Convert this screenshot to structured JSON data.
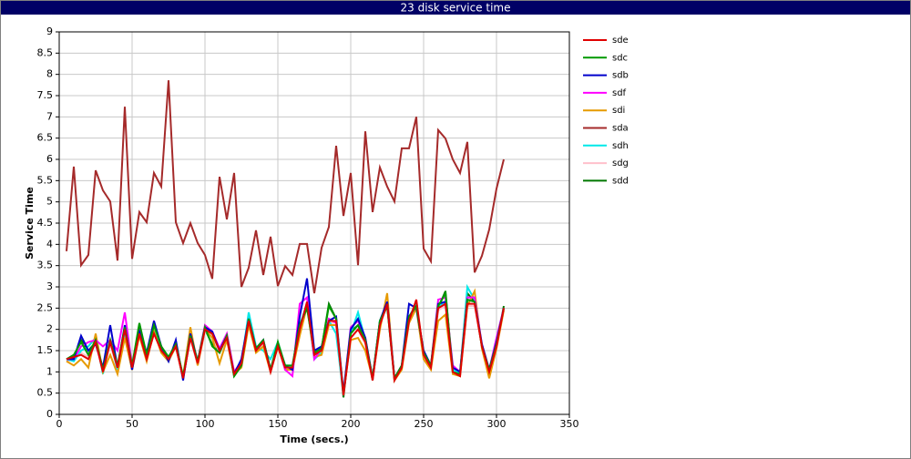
{
  "chart_data": {
    "type": "line",
    "title": "23 disk service time",
    "xlabel": "Time (secs.)",
    "ylabel": "Service Time",
    "x": [
      5,
      10,
      15,
      20,
      25,
      30,
      35,
      40,
      45,
      50,
      55,
      60,
      65,
      70,
      75,
      80,
      85,
      90,
      95,
      100,
      105,
      110,
      115,
      120,
      125,
      130,
      135,
      140,
      145,
      150,
      155,
      160,
      165,
      170,
      175,
      180,
      185,
      190,
      195,
      200,
      205,
      210,
      215,
      220,
      225,
      230,
      235,
      240,
      245,
      250,
      255,
      260,
      265,
      270,
      275,
      280,
      285,
      290,
      295,
      300,
      305
    ],
    "xlim": [
      0,
      350
    ],
    "xticks": [
      0,
      50,
      100,
      150,
      200,
      250,
      300,
      350
    ],
    "ylim": [
      0,
      9
    ],
    "yticks": [
      0,
      0.5,
      1,
      1.5,
      2,
      2.5,
      3,
      3.5,
      4,
      4.5,
      5,
      5.5,
      6,
      6.5,
      7,
      7.5,
      8,
      8.5,
      9
    ],
    "grid": true,
    "legend": "right",
    "series": [
      {
        "name": "sde",
        "color": "#e00000",
        "values": [
          1.3,
          1.35,
          1.4,
          1.3,
          1.7,
          1.0,
          1.7,
          1.1,
          2.0,
          1.1,
          1.9,
          1.3,
          1.9,
          1.5,
          1.3,
          1.6,
          0.85,
          1.8,
          1.2,
          2.0,
          1.9,
          1.5,
          1.8,
          0.95,
          1.2,
          2.2,
          1.5,
          1.7,
          1.0,
          1.6,
          1.1,
          1.1,
          2.0,
          2.65,
          1.4,
          1.5,
          2.2,
          2.2,
          0.45,
          1.8,
          2.0,
          1.7,
          0.8,
          2.1,
          2.6,
          0.8,
          1.1,
          2.2,
          2.7,
          1.4,
          1.1,
          2.5,
          2.6,
          1.0,
          0.9,
          2.6,
          2.6,
          1.6,
          1.0,
          1.6,
          2.5
        ]
      },
      {
        "name": "sdc",
        "color": "#009900",
        "values": [
          1.3,
          1.4,
          1.7,
          1.4,
          1.75,
          1.05,
          1.75,
          1.15,
          2.05,
          1.15,
          2.15,
          1.4,
          2.1,
          1.6,
          1.35,
          1.65,
          0.9,
          1.85,
          1.25,
          2.05,
          1.6,
          1.45,
          1.85,
          0.9,
          1.15,
          2.25,
          1.55,
          1.75,
          1.05,
          1.7,
          1.15,
          1.15,
          2.1,
          2.5,
          1.45,
          1.55,
          2.55,
          2.25,
          0.45,
          1.9,
          2.1,
          1.75,
          0.85,
          2.2,
          2.55,
          0.85,
          1.15,
          2.3,
          2.55,
          1.45,
          1.15,
          2.55,
          2.85,
          1.0,
          0.95,
          2.7,
          2.65,
          1.6,
          1.05,
          1.65,
          2.5
        ]
      },
      {
        "name": "sdb",
        "color": "#0000cc",
        "values": [
          1.3,
          1.3,
          1.85,
          1.5,
          1.65,
          1.1,
          2.1,
          1.1,
          2.1,
          1.05,
          1.95,
          1.45,
          2.2,
          1.6,
          1.25,
          1.75,
          0.8,
          1.9,
          1.25,
          2.05,
          1.95,
          1.5,
          1.85,
          0.95,
          1.3,
          2.25,
          1.55,
          1.75,
          1.05,
          1.65,
          1.15,
          1.05,
          2.3,
          3.2,
          1.5,
          1.6,
          2.2,
          2.3,
          0.5,
          2.0,
          2.25,
          1.8,
          0.85,
          2.2,
          2.65,
          0.85,
          1.15,
          2.6,
          2.5,
          1.5,
          1.15,
          2.6,
          2.65,
          1.1,
          1.0,
          2.7,
          2.65,
          1.65,
          1.05,
          1.7,
          2.5
        ]
      },
      {
        "name": "sdf",
        "color": "#ff00ff",
        "values": [
          1.3,
          1.3,
          1.6,
          1.7,
          1.75,
          1.6,
          1.75,
          1.5,
          2.4,
          1.15,
          2.0,
          1.35,
          2.15,
          1.6,
          1.3,
          1.7,
          0.85,
          1.85,
          1.25,
          2.1,
          1.95,
          1.55,
          1.9,
          1.0,
          1.25,
          2.25,
          1.55,
          1.75,
          1.05,
          1.65,
          1.05,
          0.9,
          2.6,
          2.75,
          1.3,
          1.55,
          2.25,
          2.15,
          0.5,
          2.05,
          2.2,
          1.8,
          0.85,
          2.15,
          2.6,
          0.85,
          1.15,
          2.3,
          2.55,
          1.45,
          1.15,
          2.7,
          2.75,
          1.15,
          1.0,
          2.75,
          2.75,
          1.65,
          1.05,
          1.8,
          2.5
        ]
      },
      {
        "name": "sdi",
        "color": "#e69a00",
        "values": [
          1.25,
          1.15,
          1.3,
          1.1,
          1.9,
          1.0,
          1.4,
          0.95,
          1.8,
          1.05,
          1.85,
          1.25,
          1.95,
          1.45,
          1.25,
          1.6,
          0.9,
          2.05,
          1.15,
          2.0,
          1.8,
          1.2,
          1.75,
          0.95,
          1.1,
          2.1,
          1.45,
          1.6,
          1.0,
          1.6,
          1.05,
          1.05,
          1.85,
          2.55,
          1.35,
          1.4,
          2.1,
          2.1,
          0.5,
          1.75,
          1.8,
          1.5,
          0.85,
          2.0,
          2.85,
          0.8,
          1.05,
          2.15,
          2.5,
          1.3,
          1.05,
          2.2,
          2.35,
          0.95,
          0.9,
          2.55,
          2.9,
          1.55,
          0.85,
          1.55,
          2.45
        ]
      },
      {
        "name": "sda",
        "color": "#a52a2a",
        "values": [
          3.84,
          5.83,
          3.51,
          3.75,
          5.74,
          5.27,
          5.01,
          3.62,
          7.24,
          3.66,
          4.76,
          4.52,
          5.68,
          5.36,
          7.86,
          4.52,
          4.03,
          4.5,
          4.03,
          3.75,
          3.19,
          5.59,
          4.59,
          5.68,
          3.0,
          3.45,
          4.33,
          3.28,
          4.18,
          3.02,
          3.49,
          3.28,
          4.01,
          4.01,
          2.85,
          3.92,
          4.41,
          6.32,
          4.67,
          5.68,
          3.51,
          6.66,
          4.76,
          5.81,
          5.36,
          5.01,
          6.26,
          6.26,
          7.0,
          3.9,
          3.6,
          6.69,
          6.49,
          6.0,
          5.68,
          6.41,
          3.34,
          3.73,
          4.35,
          5.31,
          6.0
        ]
      },
      {
        "name": "sdh",
        "color": "#00e8e8",
        "values": [
          1.3,
          1.25,
          1.5,
          1.6,
          1.8,
          0.95,
          1.75,
          1.05,
          1.95,
          1.15,
          1.9,
          1.4,
          2.0,
          1.55,
          1.25,
          1.7,
          0.85,
          1.85,
          1.2,
          2.0,
          1.9,
          1.5,
          1.85,
          0.95,
          1.2,
          2.4,
          1.6,
          1.5,
          1.3,
          1.7,
          1.15,
          1.15,
          2.1,
          2.6,
          1.3,
          1.45,
          2.2,
          1.9,
          0.45,
          1.9,
          2.4,
          1.75,
          0.85,
          2.2,
          2.6,
          0.85,
          1.1,
          2.3,
          2.6,
          1.4,
          1.1,
          2.55,
          2.65,
          1.05,
          0.95,
          3.0,
          2.7,
          1.6,
          1.05,
          1.7,
          2.5
        ]
      },
      {
        "name": "sdg",
        "color": "#ffc0cb",
        "values": [
          1.25,
          1.3,
          1.45,
          1.35,
          1.7,
          1.05,
          1.65,
          1.05,
          1.95,
          1.1,
          1.9,
          1.3,
          1.9,
          1.5,
          1.3,
          1.6,
          0.85,
          1.8,
          1.15,
          1.95,
          1.85,
          1.45,
          1.8,
          0.95,
          1.2,
          2.15,
          1.5,
          1.65,
          1.0,
          1.6,
          1.1,
          1.1,
          2.0,
          2.6,
          1.4,
          1.5,
          2.15,
          2.15,
          0.45,
          1.8,
          2.0,
          1.65,
          0.8,
          2.1,
          2.6,
          0.8,
          1.1,
          2.2,
          2.65,
          1.4,
          1.1,
          2.45,
          2.55,
          1.0,
          0.9,
          2.55,
          2.55,
          1.6,
          1.0,
          1.6,
          2.5
        ]
      },
      {
        "name": "sdd",
        "color": "#007700",
        "values": [
          1.3,
          1.35,
          1.75,
          1.5,
          1.7,
          1.05,
          1.7,
          1.1,
          1.95,
          1.05,
          2.1,
          1.4,
          2.05,
          1.55,
          1.3,
          1.6,
          0.85,
          1.85,
          1.2,
          2.0,
          1.65,
          1.45,
          1.8,
          0.9,
          1.15,
          2.2,
          1.55,
          1.7,
          1.0,
          1.7,
          1.1,
          1.1,
          2.05,
          2.6,
          1.45,
          1.55,
          2.6,
          2.25,
          0.4,
          1.95,
          2.1,
          1.7,
          0.8,
          2.15,
          2.55,
          0.8,
          1.1,
          2.3,
          2.55,
          1.45,
          1.1,
          2.5,
          2.9,
          1.0,
          0.95,
          2.85,
          2.65,
          1.6,
          1.0,
          1.6,
          2.55
        ]
      }
    ]
  }
}
